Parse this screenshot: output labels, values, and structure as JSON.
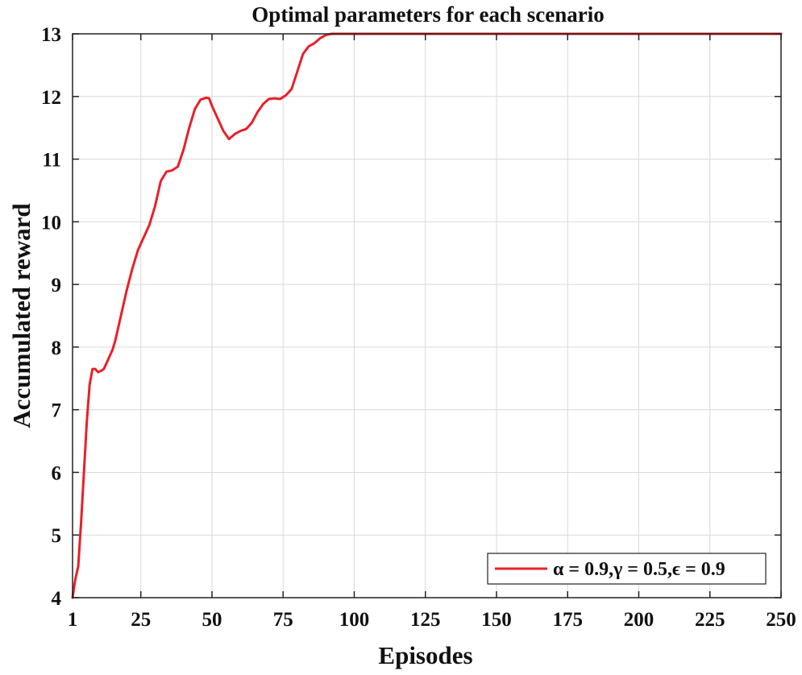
{
  "chart_data": {
    "type": "line",
    "title": "Optimal parameters for each scenario",
    "xlabel": "Episodes",
    "ylabel": "Accumulated reward",
    "xlim": [
      1,
      250
    ],
    "ylim": [
      4,
      13
    ],
    "xticks": [
      1,
      25,
      50,
      75,
      100,
      125,
      150,
      175,
      200,
      225,
      250
    ],
    "yticks": [
      4,
      5,
      6,
      7,
      8,
      9,
      10,
      11,
      12,
      13
    ],
    "grid": true,
    "legend_position": "bottom-right",
    "series": [
      {
        "name": "α = 0.9,γ = 0.5,ϵ = 0.9",
        "color": "#e8202a",
        "x": [
          1,
          2,
          3,
          4,
          5,
          6,
          7,
          8,
          9,
          10,
          11,
          12,
          13,
          14,
          15,
          16,
          17,
          18,
          20,
          22,
          24,
          26,
          28,
          30,
          32,
          34,
          36,
          38,
          40,
          42,
          44,
          46,
          48,
          49,
          50,
          52,
          54,
          56,
          58,
          60,
          62,
          64,
          66,
          68,
          70,
          72,
          74,
          76,
          78,
          80,
          82,
          84,
          86,
          88,
          90,
          92,
          94,
          96,
          100,
          125,
          150,
          175,
          200,
          225,
          250
        ],
        "values": [
          4.0,
          4.3,
          4.5,
          5.2,
          6.0,
          6.8,
          7.4,
          7.65,
          7.65,
          7.6,
          7.62,
          7.65,
          7.75,
          7.85,
          7.95,
          8.1,
          8.3,
          8.5,
          8.9,
          9.25,
          9.55,
          9.75,
          9.95,
          10.25,
          10.65,
          10.8,
          10.82,
          10.88,
          11.15,
          11.5,
          11.8,
          11.95,
          11.98,
          11.97,
          11.85,
          11.65,
          11.45,
          11.32,
          11.4,
          11.45,
          11.48,
          11.58,
          11.75,
          11.88,
          11.96,
          11.97,
          11.96,
          12.02,
          12.12,
          12.4,
          12.68,
          12.8,
          12.85,
          12.93,
          12.98,
          13.0,
          13.0,
          13.0,
          13.0,
          13.0,
          13.0,
          13.0,
          13.0,
          13.0,
          13.0
        ]
      }
    ]
  }
}
